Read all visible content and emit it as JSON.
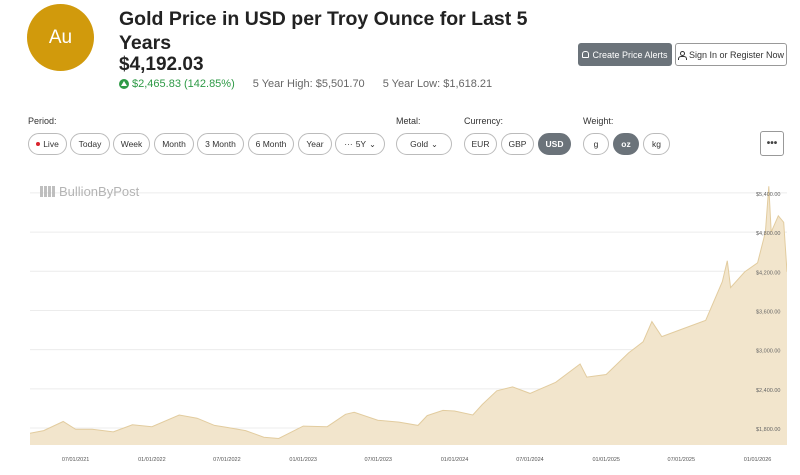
{
  "header": {
    "symbol": "Au",
    "title": "Gold Price in USD per Troy Ounce for Last 5 Years",
    "price": "$4,192.03",
    "change": "$2,465.83 (142.85%)",
    "high": "5 Year High: $5,501.70",
    "low": "5 Year Low: $1,618.21",
    "create_alerts": "Create Price Alerts",
    "sign_in": "Sign In or Register Now"
  },
  "controls": {
    "period_label": "Period:",
    "periods": [
      "Live",
      "Today",
      "Week",
      "Month",
      "3 Month",
      "6 Month",
      "Year"
    ],
    "period_selected": "5Y",
    "metal_label": "Metal:",
    "metal_selected": "Gold",
    "currency_label": "Currency:",
    "currencies": [
      "EUR",
      "GBP",
      "USD"
    ],
    "currency_active": "USD",
    "weight_label": "Weight:",
    "weights": [
      "g",
      "oz",
      "kg"
    ],
    "weight_active": "oz",
    "more_label": "•••"
  },
  "brand": {
    "watermark": "BullionByPost"
  },
  "colors": {
    "gold_badge": "#d19a0c",
    "positive": "#2e9a46",
    "area_fill": "#f2e5cc",
    "area_line": "#e2cc9f",
    "active_pill": "#6b737a"
  },
  "chart_data": {
    "type": "area",
    "x_ticks": [
      "07/01/2021",
      "01/01/2022",
      "07/01/2022",
      "01/01/2023",
      "07/01/2023",
      "01/01/2024",
      "07/01/2024",
      "01/01/2025",
      "07/01/2025",
      "01/01/2026"
    ],
    "y_ticks": [
      "$1,800.00",
      "$2,400.00",
      "$3,000.00",
      "$3,600.00",
      "$4,200.00",
      "$4,800.00",
      "$5,400.00"
    ],
    "y_tick_values": [
      1800,
      2400,
      3000,
      3600,
      4200,
      4800,
      5400
    ],
    "ylim": [
      1540,
      5720
    ],
    "xlim": [
      "2021-03-13",
      "2026-03-13"
    ],
    "grid": true,
    "series": [
      {
        "x": [
          "2021-03-13",
          "2021-04-15",
          "2021-06-01",
          "2021-07-01",
          "2021-08-10",
          "2021-09-30",
          "2021-11-15",
          "2022-01-01",
          "2022-03-08",
          "2022-04-20",
          "2022-06-01",
          "2022-07-01",
          "2022-08-15",
          "2022-09-28",
          "2022-11-03",
          "2023-01-01",
          "2023-02-28",
          "2023-04-13",
          "2023-05-04",
          "2023-06-30",
          "2023-08-20",
          "2023-10-05",
          "2023-10-27",
          "2023-12-04",
          "2024-01-01",
          "2024-02-14",
          "2024-03-08",
          "2024-04-12",
          "2024-05-20",
          "2024-07-01",
          "2024-09-01",
          "2024-10-30",
          "2024-11-15",
          "2025-01-01",
          "2025-02-24",
          "2025-03-31",
          "2025-04-21",
          "2025-05-15",
          "2025-07-01",
          "2025-08-29",
          "2025-10-08",
          "2025-10-20",
          "2025-10-28",
          "2025-12-01",
          "2026-01-01",
          "2026-01-20",
          "2026-01-28",
          "2026-02-03",
          "2026-02-20",
          "2026-03-05",
          "2026-03-13"
        ],
        "y": [
          1720,
          1760,
          1900,
          1780,
          1780,
          1740,
          1850,
          1820,
          2000,
          1950,
          1840,
          1810,
          1760,
          1660,
          1640,
          1830,
          1820,
          2010,
          2040,
          1920,
          1890,
          1840,
          1990,
          2070,
          2060,
          2000,
          2160,
          2370,
          2430,
          2330,
          2500,
          2780,
          2580,
          2620,
          2950,
          3120,
          3430,
          3200,
          3310,
          3450,
          4040,
          4360,
          3950,
          4190,
          4330,
          4800,
          5501.7,
          4800,
          5050,
          4950,
          4192.03
        ]
      }
    ]
  }
}
